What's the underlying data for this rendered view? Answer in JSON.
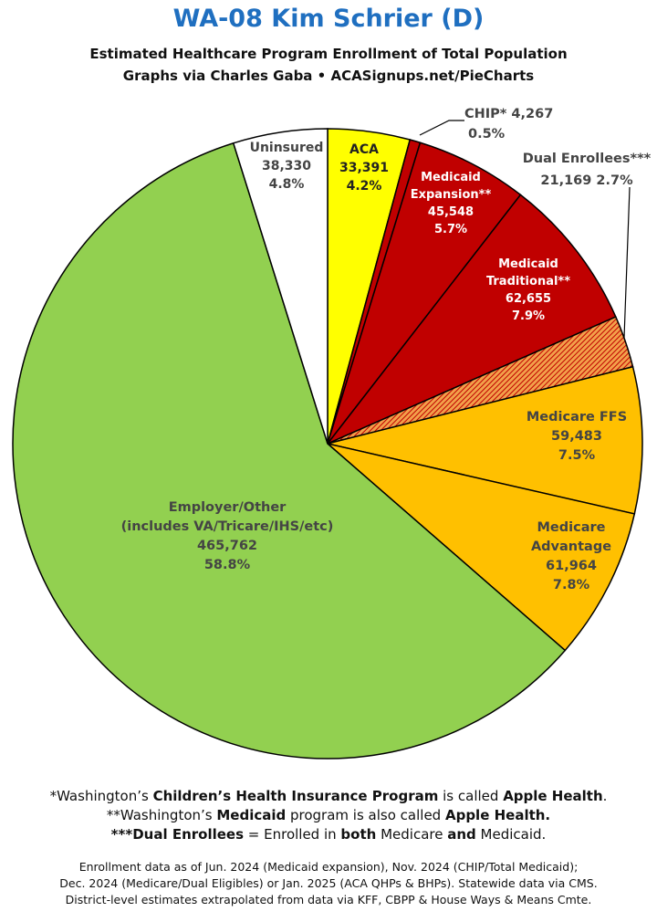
{
  "header": {
    "title": "WA-08 Kim Schrier (D)",
    "subtitle_line1": "Estimated Healthcare Program Enrollment of Total Population",
    "subtitle_line2": "Graphs via Charles Gaba  •  ACASignups.net/PieCharts"
  },
  "chart_data": {
    "type": "pie",
    "title": "WA-08 Kim Schrier (D)",
    "start": "12 o'clock, clockwise",
    "slices": [
      {
        "key": "aca",
        "label": "ACA",
        "value": 33391,
        "value_label": "33,391",
        "pct_label": "4.2%",
        "color": "#ffff00"
      },
      {
        "key": "chip",
        "label": "CHIP*",
        "value": 4267,
        "value_label": "4,267",
        "pct_label": "0.5%",
        "color": "#c00000"
      },
      {
        "key": "medicaid_exp",
        "label": "Medicaid Expansion**",
        "label_lines": [
          "Medicaid",
          "Expansion**"
        ],
        "value": 45548,
        "value_label": "45,548",
        "pct_label": "5.7%",
        "color": "#c00000"
      },
      {
        "key": "medicaid_trad",
        "label": "Medicaid Traditional**",
        "label_lines": [
          "Medicaid",
          "Traditional**"
        ],
        "value": 62655,
        "value_label": "62,655",
        "pct_label": "7.9%",
        "color": "#c00000"
      },
      {
        "key": "dual",
        "label": "Dual Enrollees***",
        "value": 21169,
        "value_label": "21,169",
        "pct_label": "2.7%",
        "color": "hatch"
      },
      {
        "key": "medicare_ffs",
        "label": "Medicare FFS",
        "value": 59483,
        "value_label": "59,483",
        "pct_label": "7.5%",
        "color": "#ffc000"
      },
      {
        "key": "medicare_adv",
        "label": "Medicare Advantage",
        "label_lines": [
          "Medicare",
          "Advantage"
        ],
        "value": 61964,
        "value_label": "61,964",
        "pct_label": "7.8%",
        "color": "#ffc000"
      },
      {
        "key": "employer",
        "label": "Employer/Other",
        "label_lines": [
          "Employer/Other",
          "(includes VA/Tricare/IHS/etc)"
        ],
        "value": 465762,
        "value_label": "465,762",
        "pct_label": "58.8%",
        "color": "#92d050"
      },
      {
        "key": "uninsured",
        "label": "Uninsured",
        "value": 38330,
        "value_label": "38,330",
        "pct_label": "4.8%",
        "color": "#ffffff"
      }
    ]
  },
  "footnotes": {
    "n1_pre": "*Washington’s ",
    "n1_b1": "Children’s Health Insurance Program",
    "n1_mid": " is called ",
    "n1_b2": "Apple Health",
    "n1_end": ".",
    "n2_pre": "**Washington’s ",
    "n2_b1": "Medicaid",
    "n2_mid": " program is also called ",
    "n2_b2": "Apple Health.",
    "n3_b1": "***Dual Enrollees",
    "n3_mid": " = Enrolled in ",
    "n3_b2": "both",
    "n3_mid2": " Medicare ",
    "n3_b3": "and",
    "n3_end": " Medicaid."
  },
  "sources": {
    "line1": "Enrollment data as of Jun. 2024 (Medicaid expansion), Nov. 2024 (CHIP/Total Medicaid);",
    "line2": "Dec. 2024 (Medicare/Dual Eligibles) or Jan. 2025 (ACA QHPs & BHPs). Statewide data via CMS.",
    "line3": "District-level estimates extrapolated from data via KFF, CBPP & House Ways & Means Cmte."
  }
}
